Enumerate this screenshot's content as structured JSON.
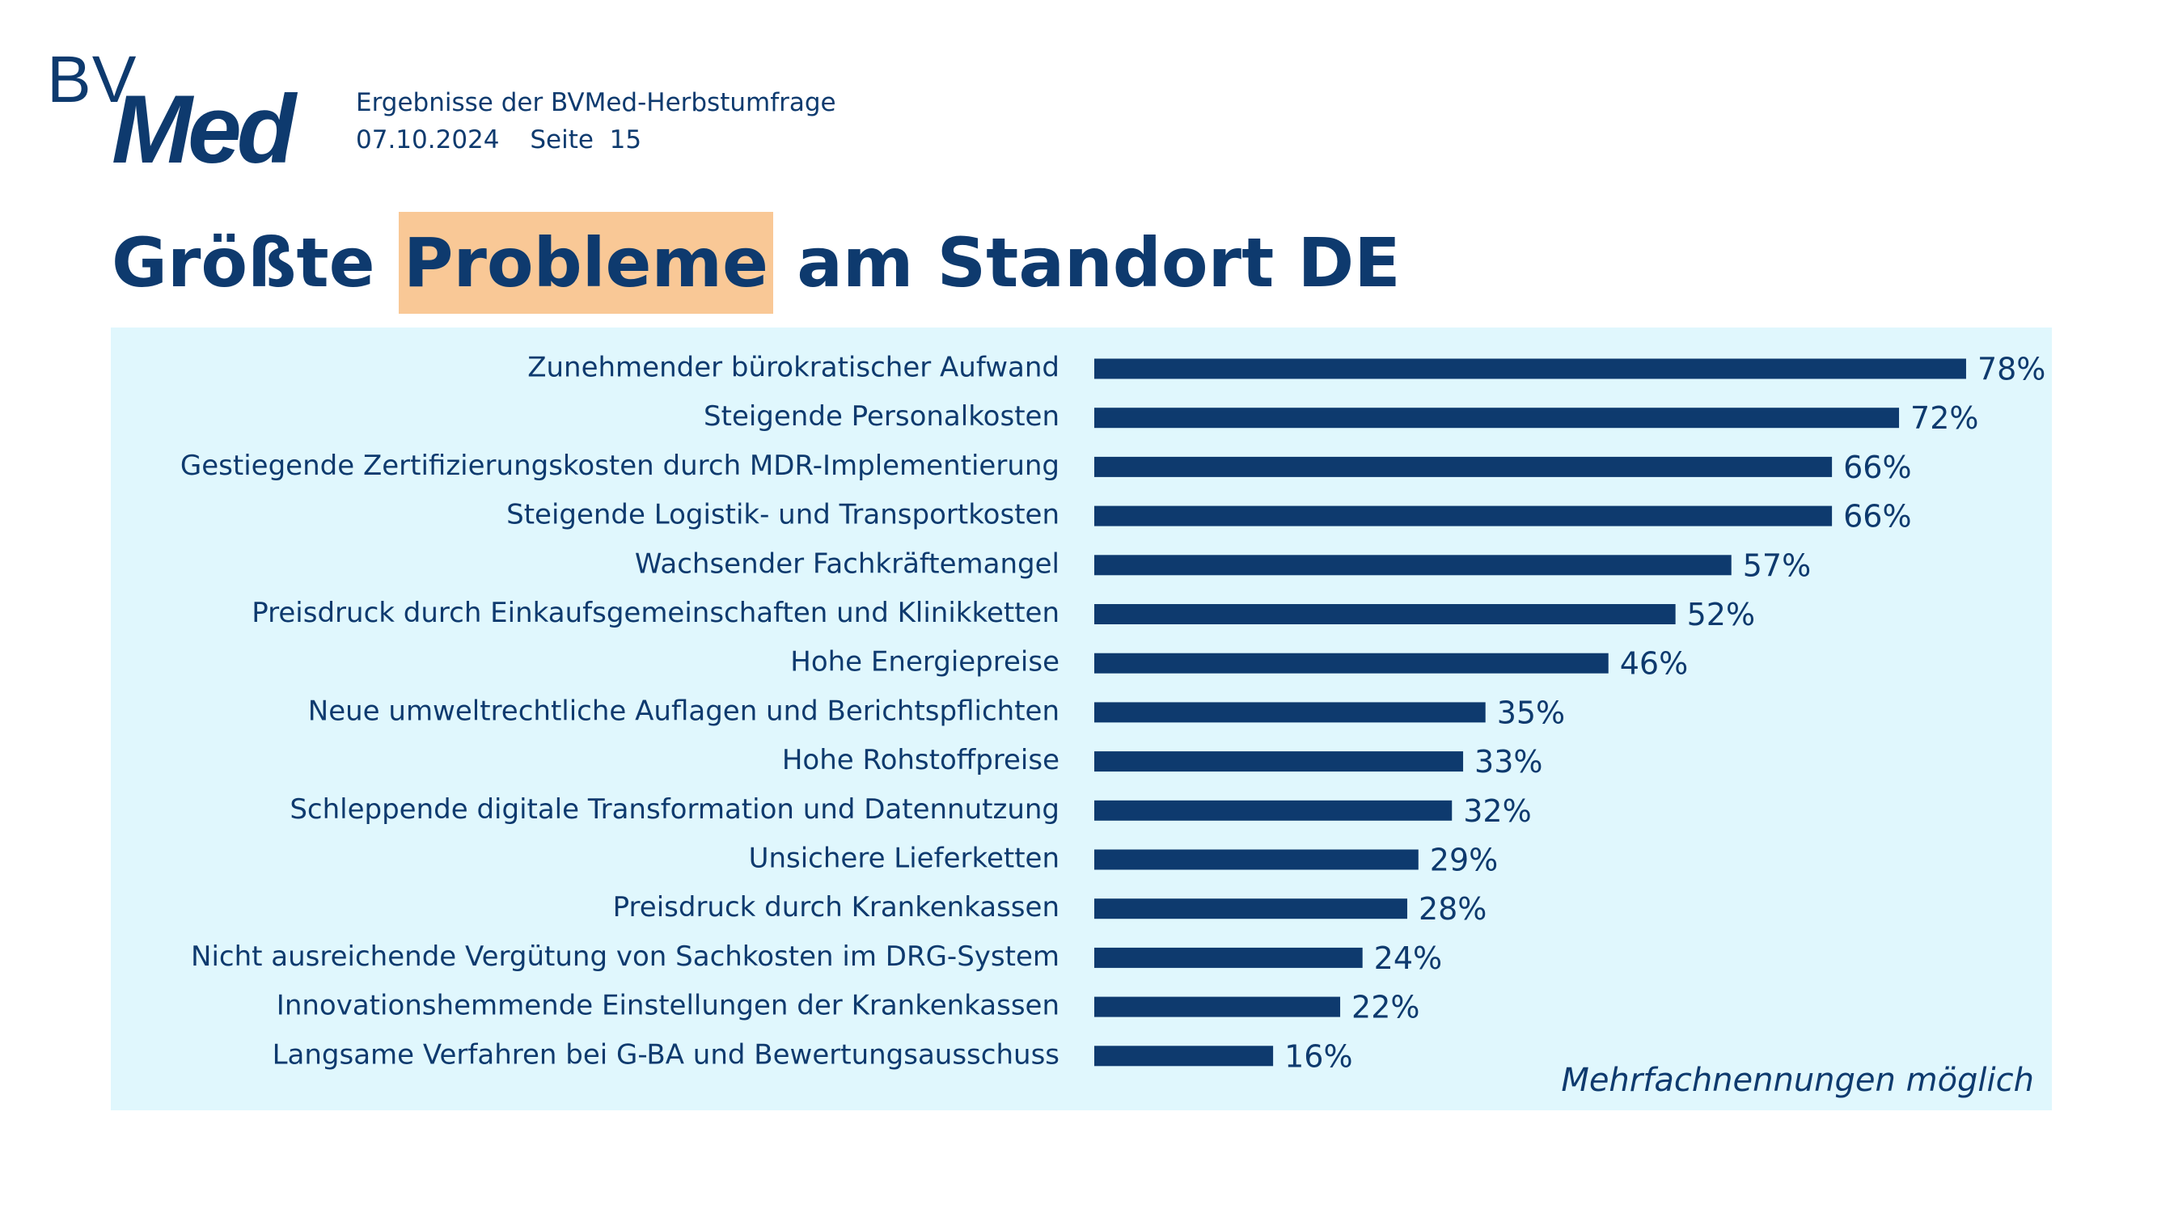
{
  "header": {
    "logo_text_bv": "BV",
    "logo_text_med": "Med",
    "subtitle": "Ergebnisse der BVMed-Herbstumfrage",
    "date": "07.10.2024",
    "page": "Seite  15"
  },
  "title": {
    "before": "Größte ",
    "highlight": "Probleme",
    "after": " am Standort DE"
  },
  "note": "Mehrfachnennungen möglich",
  "colors": {
    "bar": "#0e3a6e",
    "panel": "#e0f7fd",
    "highlight": "#f9c896"
  },
  "chart_data": {
    "type": "bar",
    "orientation": "horizontal",
    "categories": [
      "Zunehmender bürokratischer Aufwand",
      "Steigende Personalkosten",
      "Gestiegende Zertifizierungskosten durch MDR-Implementierung",
      "Steigende Logistik- und Transportkosten",
      "Wachsender Fachkräftemangel",
      "Preisdruck durch Einkaufsgemeinschaften und Klinikketten",
      "Hohe Energiepreise",
      "Neue umweltrechtliche Auflagen und Berichtspflichten",
      "Hohe Rohstoffpreise",
      "Schleppende digitale Transformation und Datennutzung",
      "Unsichere Lieferketten",
      "Preisdruck durch Krankenkassen",
      "Nicht ausreichende Vergütung von Sachkosten im DRG-System",
      "Innovationshemmende Einstellungen der Krankenkassen",
      "Langsame Verfahren bei G-BA und Bewertungsausschuss"
    ],
    "values": [
      78,
      72,
      66,
      66,
      57,
      52,
      46,
      35,
      33,
      32,
      29,
      28,
      24,
      22,
      16
    ],
    "value_labels": [
      "78%",
      "72%",
      "66%",
      "66%",
      "57%",
      "52%",
      "46%",
      "35%",
      "33%",
      "32%",
      "29%",
      "28%",
      "24%",
      "22%",
      "16%"
    ],
    "unit": "%",
    "xlim": [
      0,
      100
    ],
    "grid": false
  }
}
